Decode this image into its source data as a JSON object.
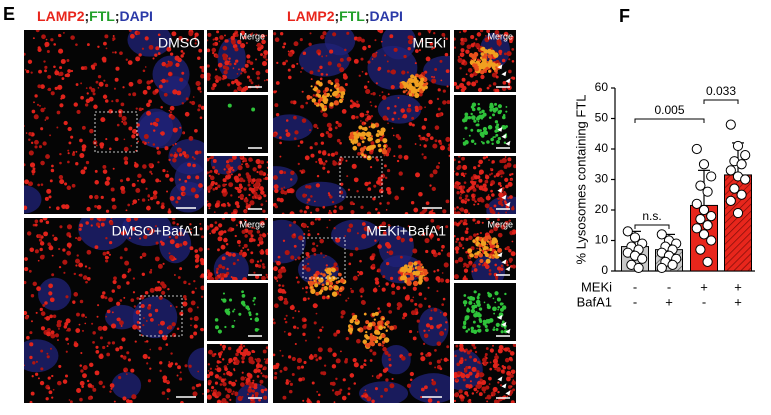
{
  "figure_e": {
    "label": "E",
    "columns": [
      {
        "stain": [
          "LAMP2",
          ";",
          "FTL",
          ";",
          "DAPI"
        ]
      },
      {
        "stain": [
          "LAMP2",
          ";",
          "FTL",
          ";",
          "DAPI"
        ]
      }
    ],
    "panels": [
      {
        "label": "DMSO",
        "inset_label": "Merge"
      },
      {
        "label": "MEKi",
        "inset_label": "Merge"
      },
      {
        "label": "DMSO+BafA1",
        "inset_label": "Merge"
      },
      {
        "label": "MEKi+BafA1",
        "inset_label": "Merge"
      }
    ]
  },
  "figure_f": {
    "label": "F"
  },
  "chart_data": {
    "type": "bar",
    "y_label": "% Lysosomes containing FTL",
    "values": [
      8,
      7,
      21.5,
      31.5
    ],
    "errors": [
      5,
      5,
      11.5,
      10.5
    ],
    "points": [
      [
        13,
        11,
        9,
        8,
        7,
        6,
        5,
        4,
        2,
        1
      ],
      [
        12,
        10,
        9,
        8,
        7,
        6,
        5,
        4,
        3,
        2,
        1
      ],
      [
        40,
        35,
        31,
        28,
        26,
        22,
        20,
        18,
        17,
        15,
        14,
        12,
        10,
        7,
        3
      ],
      [
        48,
        41,
        38,
        36,
        35,
        33,
        31,
        30,
        27,
        25,
        23,
        19
      ]
    ],
    "colors": [
      "#c9c9c9",
      "#c9c9c9",
      "#e8261c",
      "#e8261c"
    ],
    "hatched": [
      false,
      true,
      false,
      true
    ],
    "hatch_colors": [
      "#555555",
      "#555555",
      "#7a0d08",
      "#7a0d08"
    ],
    "ylim": [
      0,
      60
    ],
    "yticks": [
      0,
      10,
      20,
      30,
      40,
      50,
      60
    ],
    "conditions": [
      {
        "name": "MEKi",
        "signs": [
          "-",
          "-",
          "+",
          "+"
        ]
      },
      {
        "name": "BafA1",
        "signs": [
          "-",
          "+",
          "-",
          "+"
        ]
      }
    ],
    "annotations": [
      {
        "text": "n.s.",
        "from": 0,
        "to": 1
      },
      {
        "text": "0.005",
        "from": 0,
        "to": 2
      },
      {
        "text": "0.033",
        "from": 2,
        "to": 3
      }
    ]
  }
}
